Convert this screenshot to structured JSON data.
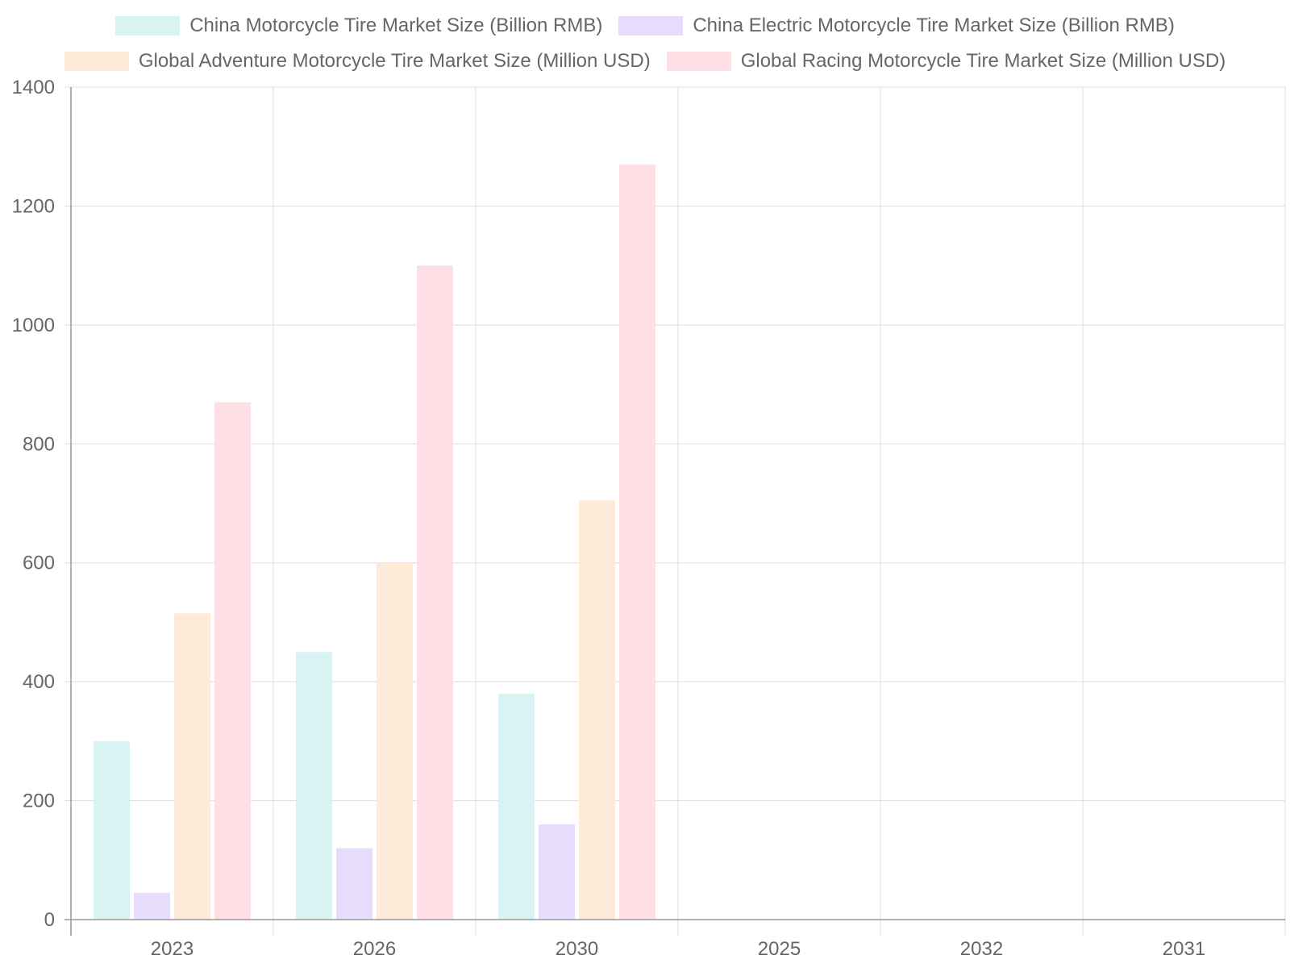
{
  "chart_data": {
    "type": "bar",
    "categories": [
      "2023",
      "2026",
      "2030",
      "2025",
      "2032",
      "2031"
    ],
    "series": [
      {
        "name": "China Motorcycle Tire Market Size (Billion RMB)",
        "color": "#d9f2f2",
        "values": [
          300,
          450,
          380,
          null,
          null,
          null
        ]
      },
      {
        "name": "China Electric Motorcycle Tire Market Size (Billion RMB)",
        "color": "#e6ddfd",
        "values": [
          45,
          120,
          160,
          null,
          null,
          null
        ]
      },
      {
        "name": "Global Adventure Motorcycle Tire Market Size (Million USD)",
        "color": "#feead8",
        "values": [
          515,
          600,
          705,
          null,
          null,
          null
        ]
      },
      {
        "name": "Global Racing Motorcycle Tire Market Size (Million USD)",
        "color": "#fedfe6",
        "values": [
          870,
          1100,
          1270,
          null,
          null,
          null
        ]
      }
    ],
    "ylim": [
      0,
      1400
    ],
    "y_ticks": [
      "0",
      "200",
      "400",
      "600",
      "800",
      "1000",
      "1200",
      "1400"
    ],
    "grid": true,
    "legend_position": "top"
  }
}
